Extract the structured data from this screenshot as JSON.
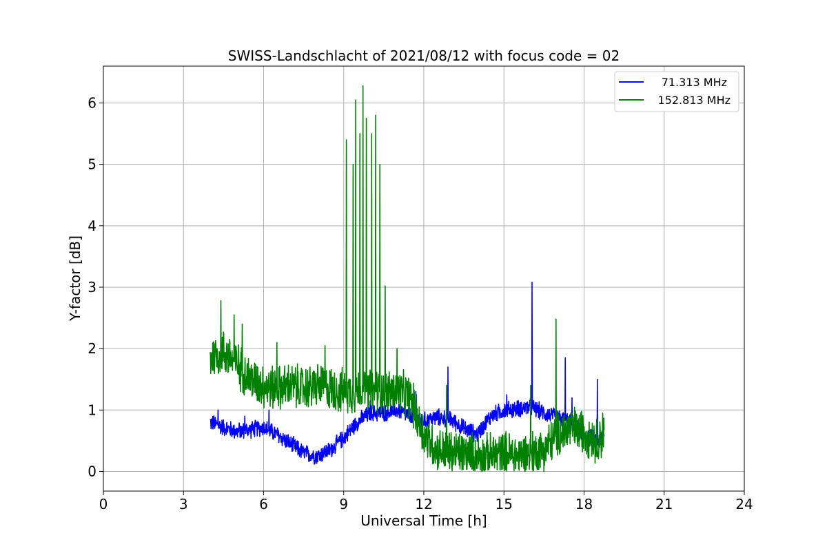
{
  "chart_data": {
    "type": "line",
    "title": "SWISS-Landschlacht of 2021/08/12 with focus code = 02",
    "xlabel": "Universal Time [h]",
    "ylabel": "Y-factor [dB]",
    "xlim": [
      0,
      24
    ],
    "ylim": [
      -0.32,
      6.6
    ],
    "xticks": [
      0,
      3,
      6,
      9,
      12,
      15,
      18,
      21,
      24
    ],
    "yticks": [
      0,
      1,
      2,
      3,
      4,
      5,
      6
    ],
    "grid": true,
    "legend_position": "top-right",
    "series": [
      {
        "name": "71.313 MHz",
        "color": "#0000ff",
        "baseline": [
          [
            4.0,
            0.8
          ],
          [
            4.5,
            0.72
          ],
          [
            5.0,
            0.65
          ],
          [
            5.5,
            0.68
          ],
          [
            6.0,
            0.72
          ],
          [
            6.5,
            0.6
          ],
          [
            7.0,
            0.45
          ],
          [
            7.5,
            0.3
          ],
          [
            8.0,
            0.25
          ],
          [
            8.5,
            0.35
          ],
          [
            9.0,
            0.55
          ],
          [
            9.5,
            0.8
          ],
          [
            10.0,
            0.95
          ],
          [
            10.5,
            0.95
          ],
          [
            11.0,
            1.0
          ],
          [
            11.5,
            0.9
          ],
          [
            12.0,
            0.82
          ],
          [
            12.5,
            0.88
          ],
          [
            13.0,
            0.85
          ],
          [
            13.5,
            0.7
          ],
          [
            14.0,
            0.6
          ],
          [
            14.5,
            0.9
          ],
          [
            15.0,
            1.0
          ],
          [
            15.5,
            1.02
          ],
          [
            16.0,
            1.05
          ],
          [
            16.5,
            0.95
          ],
          [
            17.0,
            0.88
          ],
          [
            17.5,
            0.8
          ],
          [
            18.0,
            0.6
          ],
          [
            18.5,
            0.5
          ],
          [
            18.75,
            0.55
          ]
        ],
        "noise": 0.16,
        "spikes": [
          [
            4.3,
            1.0
          ],
          [
            5.3,
            0.9
          ],
          [
            6.2,
            1.0
          ],
          [
            10.0,
            1.15
          ],
          [
            11.7,
            1.3
          ],
          [
            12.9,
            1.7
          ],
          [
            15.1,
            1.25
          ],
          [
            16.05,
            3.08
          ],
          [
            17.3,
            1.85
          ],
          [
            17.55,
            1.2
          ],
          [
            18.5,
            1.5
          ]
        ]
      },
      {
        "name": "152.813 MHz",
        "color": "#008000",
        "baseline": [
          [
            4.0,
            1.85
          ],
          [
            4.5,
            1.95
          ],
          [
            5.0,
            1.75
          ],
          [
            5.5,
            1.5
          ],
          [
            6.0,
            1.4
          ],
          [
            6.5,
            1.35
          ],
          [
            7.0,
            1.4
          ],
          [
            7.5,
            1.35
          ],
          [
            8.0,
            1.4
          ],
          [
            8.5,
            1.35
          ],
          [
            9.0,
            1.3
          ],
          [
            9.5,
            1.3
          ],
          [
            10.0,
            1.3
          ],
          [
            10.5,
            1.3
          ],
          [
            11.0,
            1.3
          ],
          [
            11.5,
            1.2
          ],
          [
            12.0,
            0.6
          ],
          [
            12.5,
            0.35
          ],
          [
            13.0,
            0.3
          ],
          [
            13.5,
            0.3
          ],
          [
            14.0,
            0.25
          ],
          [
            14.5,
            0.25
          ],
          [
            15.0,
            0.3
          ],
          [
            15.5,
            0.25
          ],
          [
            16.0,
            0.3
          ],
          [
            16.5,
            0.35
          ],
          [
            17.0,
            0.6
          ],
          [
            17.5,
            0.7
          ],
          [
            18.0,
            0.65
          ],
          [
            18.5,
            0.5
          ],
          [
            18.75,
            0.6
          ]
        ],
        "noise": 0.42,
        "spikes": [
          [
            4.4,
            2.78
          ],
          [
            4.9,
            2.55
          ],
          [
            5.2,
            2.4
          ],
          [
            6.5,
            2.1
          ],
          [
            8.3,
            2.05
          ],
          [
            9.1,
            5.4
          ],
          [
            9.35,
            5.0
          ],
          [
            9.45,
            6.05
          ],
          [
            9.6,
            5.5
          ],
          [
            9.72,
            6.28
          ],
          [
            9.85,
            5.75
          ],
          [
            10.05,
            5.5
          ],
          [
            10.2,
            5.8
          ],
          [
            10.35,
            5.0
          ],
          [
            10.55,
            3.02
          ],
          [
            11.0,
            2.0
          ],
          [
            12.85,
            1.4
          ],
          [
            16.0,
            1.4
          ],
          [
            16.95,
            2.48
          ],
          [
            18.7,
            0.95
          ]
        ]
      }
    ]
  }
}
